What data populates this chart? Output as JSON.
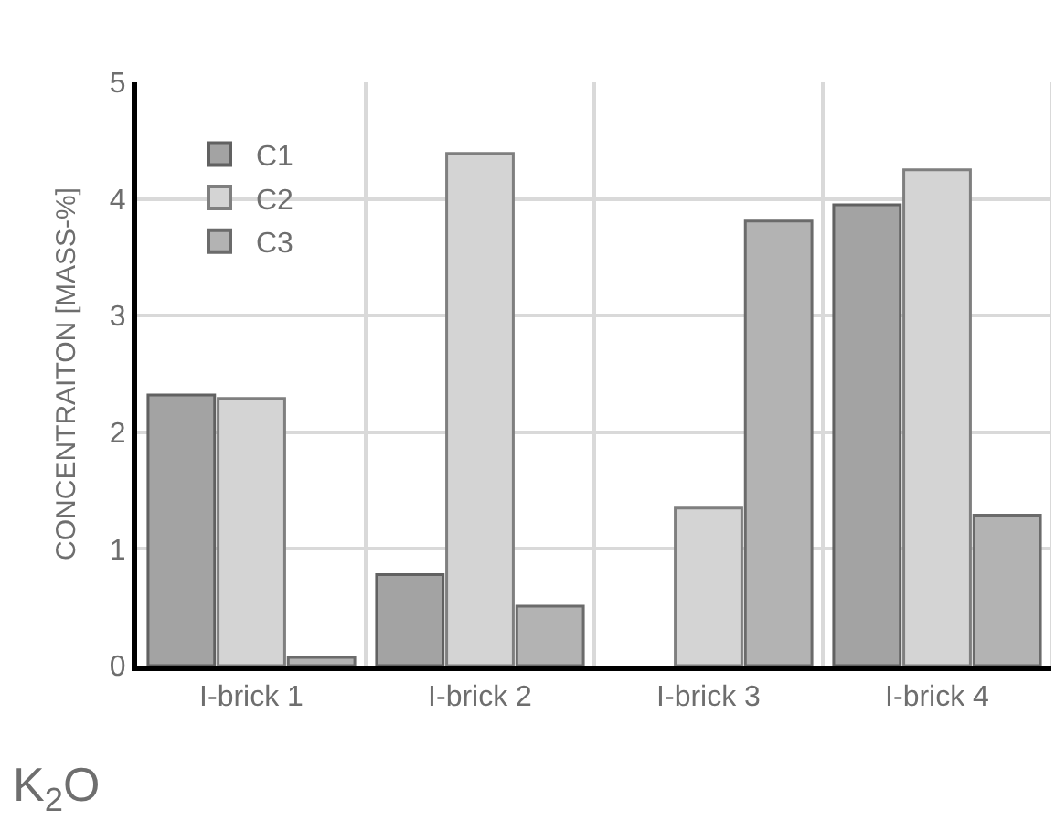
{
  "chart_data": {
    "type": "bar",
    "ylabel": "CONCENTRAITON [MASS-%]",
    "annotations": [
      "K$_{2}$O"
    ],
    "categories": [
      "I-brick 1",
      "I-brick 2",
      "I-brick 3",
      "I-brick 4"
    ],
    "series": [
      {
        "name": "C1",
        "color": "#a3a3a3",
        "values": [
          2.32,
          0.78,
          0,
          3.95
        ]
      },
      {
        "name": "C2",
        "color": "#d4d4d4",
        "values": [
          2.29,
          4.39,
          1.35,
          4.25
        ]
      },
      {
        "name": "C3",
        "color": "#b3b3b3",
        "values": [
          0.07,
          0.51,
          3.81,
          1.29
        ]
      }
    ],
    "ylim": [
      0,
      5
    ],
    "yticks": [
      0,
      1,
      2,
      3,
      4,
      5
    ],
    "grid": true,
    "legend": "top left"
  }
}
